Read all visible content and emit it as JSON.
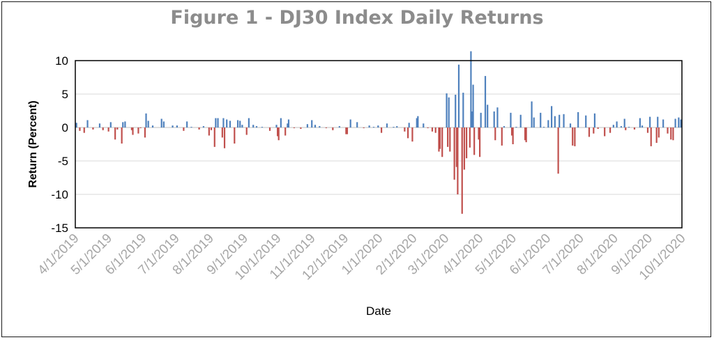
{
  "chart_data": {
    "type": "bar",
    "title": "Figure 1 - DJ30 Index Daily Returns",
    "xlabel": "Date",
    "ylabel": "Return (Percent)",
    "ylim": [
      -15,
      10
    ],
    "y_ticks": [
      "10",
      "5",
      "0",
      "-5",
      "-10",
      "-15"
    ],
    "x_range": [
      "2019-04-01",
      "2020-10-01"
    ],
    "x_ticks": [
      {
        "date": "2019-04-01",
        "label": "4/1/2019"
      },
      {
        "date": "2019-05-01",
        "label": "5/1/2019"
      },
      {
        "date": "2019-06-01",
        "label": "6/1/2019"
      },
      {
        "date": "2019-07-01",
        "label": "7/1/2019"
      },
      {
        "date": "2019-08-01",
        "label": "8/1/2019"
      },
      {
        "date": "2019-09-01",
        "label": "9/1/2019"
      },
      {
        "date": "2019-10-01",
        "label": "10/1/2019"
      },
      {
        "date": "2019-11-01",
        "label": "11/1/2019"
      },
      {
        "date": "2019-12-01",
        "label": "12/1/2019"
      },
      {
        "date": "2020-01-01",
        "label": "1/1/2020"
      },
      {
        "date": "2020-02-01",
        "label": "2/1/2020"
      },
      {
        "date": "2020-03-01",
        "label": "3/1/2020"
      },
      {
        "date": "2020-04-01",
        "label": "4/1/2020"
      },
      {
        "date": "2020-05-01",
        "label": "5/1/2020"
      },
      {
        "date": "2020-06-01",
        "label": "6/1/2020"
      },
      {
        "date": "2020-07-01",
        "label": "7/1/2020"
      },
      {
        "date": "2020-08-01",
        "label": "8/1/2020"
      },
      {
        "date": "2020-09-01",
        "label": "9/1/2020"
      },
      {
        "date": "2020-10-01",
        "label": "10/1/2020"
      }
    ],
    "grid": true,
    "legend": "none",
    "colors": {
      "positive": "#4f81bd",
      "negative": "#c0504d",
      "axis": "#000000",
      "grid": "#d9d9d9",
      "title": "#8c8c8c",
      "x_tick_text": "#a6a6a6"
    },
    "series": [
      {
        "points": [
          {
            "date": "2019-04-02",
            "value": 0.7
          },
          {
            "date": "2019-04-05",
            "value": -0.5
          },
          {
            "date": "2019-04-09",
            "value": -0.8
          },
          {
            "date": "2019-04-12",
            "value": 1.1
          },
          {
            "date": "2019-04-17",
            "value": -0.3
          },
          {
            "date": "2019-04-23",
            "value": 0.6
          },
          {
            "date": "2019-04-26",
            "value": -0.4
          },
          {
            "date": "2019-05-01",
            "value": -0.6
          },
          {
            "date": "2019-05-03",
            "value": 0.8
          },
          {
            "date": "2019-05-07",
            "value": -1.8
          },
          {
            "date": "2019-05-09",
            "value": -0.3
          },
          {
            "date": "2019-05-13",
            "value": -2.4
          },
          {
            "date": "2019-05-14",
            "value": 0.8
          },
          {
            "date": "2019-05-16",
            "value": 0.9
          },
          {
            "date": "2019-05-22",
            "value": -0.4
          },
          {
            "date": "2019-05-23",
            "value": -1.1
          },
          {
            "date": "2019-05-28",
            "value": -0.9
          },
          {
            "date": "2019-05-30",
            "value": -0.1
          },
          {
            "date": "2019-06-03",
            "value": -1.5
          },
          {
            "date": "2019-06-04",
            "value": 2.1
          },
          {
            "date": "2019-06-06",
            "value": 1.0
          },
          {
            "date": "2019-06-10",
            "value": 0.3
          },
          {
            "date": "2019-06-18",
            "value": 1.3
          },
          {
            "date": "2019-06-20",
            "value": 0.9
          },
          {
            "date": "2019-06-28",
            "value": 0.3
          },
          {
            "date": "2019-07-02",
            "value": 0.3
          },
          {
            "date": "2019-07-08",
            "value": -0.5
          },
          {
            "date": "2019-07-11",
            "value": 0.9
          },
          {
            "date": "2019-07-15",
            "value": 0.1
          },
          {
            "date": "2019-07-22",
            "value": -0.3
          },
          {
            "date": "2019-07-26",
            "value": 0.2
          },
          {
            "date": "2019-07-31",
            "value": -1.2
          },
          {
            "date": "2019-08-02",
            "value": -0.4
          },
          {
            "date": "2019-08-05",
            "value": -2.9
          },
          {
            "date": "2019-08-06",
            "value": 1.4
          },
          {
            "date": "2019-08-08",
            "value": 1.4
          },
          {
            "date": "2019-08-12",
            "value": -1.5
          },
          {
            "date": "2019-08-13",
            "value": 1.4
          },
          {
            "date": "2019-08-14",
            "value": -3.1
          },
          {
            "date": "2019-08-16",
            "value": 1.2
          },
          {
            "date": "2019-08-19",
            "value": 1.0
          },
          {
            "date": "2019-08-23",
            "value": -2.4
          },
          {
            "date": "2019-08-26",
            "value": 1.1
          },
          {
            "date": "2019-08-28",
            "value": 1.0
          },
          {
            "date": "2019-08-30",
            "value": 0.4
          },
          {
            "date": "2019-09-03",
            "value": -1.1
          },
          {
            "date": "2019-09-05",
            "value": 1.4
          },
          {
            "date": "2019-09-09",
            "value": 0.4
          },
          {
            "date": "2019-09-12",
            "value": 0.2
          },
          {
            "date": "2019-09-17",
            "value": 0.1
          },
          {
            "date": "2019-09-24",
            "value": -0.5
          },
          {
            "date": "2019-09-30",
            "value": 0.4
          },
          {
            "date": "2019-10-01",
            "value": -1.3
          },
          {
            "date": "2019-10-02",
            "value": -1.9
          },
          {
            "date": "2019-10-04",
            "value": 1.4
          },
          {
            "date": "2019-10-08",
            "value": -1.2
          },
          {
            "date": "2019-10-10",
            "value": 0.6
          },
          {
            "date": "2019-10-11",
            "value": 1.2
          },
          {
            "date": "2019-10-16",
            "value": -0.1
          },
          {
            "date": "2019-10-22",
            "value": -0.2
          },
          {
            "date": "2019-10-28",
            "value": 0.5
          },
          {
            "date": "2019-11-01",
            "value": 1.1
          },
          {
            "date": "2019-11-04",
            "value": 0.4
          },
          {
            "date": "2019-11-08",
            "value": 0.2
          },
          {
            "date": "2019-11-14",
            "value": -0.1
          },
          {
            "date": "2019-11-20",
            "value": -0.4
          },
          {
            "date": "2019-11-26",
            "value": 0.2
          },
          {
            "date": "2019-12-02",
            "value": -1.0
          },
          {
            "date": "2019-12-03",
            "value": -1.0
          },
          {
            "date": "2019-12-06",
            "value": 1.2
          },
          {
            "date": "2019-12-12",
            "value": 0.8
          },
          {
            "date": "2019-12-18",
            "value": -0.1
          },
          {
            "date": "2019-12-23",
            "value": 0.3
          },
          {
            "date": "2019-12-27",
            "value": 0.1
          },
          {
            "date": "2019-12-31",
            "value": 0.3
          },
          {
            "date": "2020-01-03",
            "value": -0.8
          },
          {
            "date": "2020-01-08",
            "value": 0.6
          },
          {
            "date": "2020-01-14",
            "value": 0.1
          },
          {
            "date": "2020-01-17",
            "value": 0.2
          },
          {
            "date": "2020-01-24",
            "value": -0.6
          },
          {
            "date": "2020-01-27",
            "value": -1.6
          },
          {
            "date": "2020-01-28",
            "value": 0.7
          },
          {
            "date": "2020-01-31",
            "value": -2.1
          },
          {
            "date": "2020-02-04",
            "value": 1.4
          },
          {
            "date": "2020-02-05",
            "value": 1.7
          },
          {
            "date": "2020-02-10",
            "value": 0.6
          },
          {
            "date": "2020-02-14",
            "value": -0.1
          },
          {
            "date": "2020-02-18",
            "value": -0.6
          },
          {
            "date": "2020-02-21",
            "value": -0.8
          },
          {
            "date": "2020-02-24",
            "value": -3.6
          },
          {
            "date": "2020-02-25",
            "value": -3.2
          },
          {
            "date": "2020-02-27",
            "value": -4.4
          },
          {
            "date": "2020-03-02",
            "value": 5.1
          },
          {
            "date": "2020-03-03",
            "value": -2.9
          },
          {
            "date": "2020-03-04",
            "value": 4.5
          },
          {
            "date": "2020-03-05",
            "value": -3.6
          },
          {
            "date": "2020-03-09",
            "value": -7.8
          },
          {
            "date": "2020-03-10",
            "value": 4.9
          },
          {
            "date": "2020-03-11",
            "value": -5.9
          },
          {
            "date": "2020-03-12",
            "value": -10.0
          },
          {
            "date": "2020-03-13",
            "value": 9.4
          },
          {
            "date": "2020-03-16",
            "value": -12.9
          },
          {
            "date": "2020-03-17",
            "value": 5.2
          },
          {
            "date": "2020-03-18",
            "value": -6.3
          },
          {
            "date": "2020-03-20",
            "value": -4.6
          },
          {
            "date": "2020-03-23",
            "value": -3.0
          },
          {
            "date": "2020-03-24",
            "value": 11.4
          },
          {
            "date": "2020-03-25",
            "value": 2.4
          },
          {
            "date": "2020-03-26",
            "value": 6.4
          },
          {
            "date": "2020-03-27",
            "value": -4.1
          },
          {
            "date": "2020-03-31",
            "value": -1.8
          },
          {
            "date": "2020-04-01",
            "value": -4.4
          },
          {
            "date": "2020-04-02",
            "value": 2.2
          },
          {
            "date": "2020-04-06",
            "value": 7.7
          },
          {
            "date": "2020-04-08",
            "value": 3.4
          },
          {
            "date": "2020-04-14",
            "value": 2.4
          },
          {
            "date": "2020-04-15",
            "value": -1.9
          },
          {
            "date": "2020-04-17",
            "value": 3.0
          },
          {
            "date": "2020-04-21",
            "value": -2.7
          },
          {
            "date": "2020-04-23",
            "value": 0.2
          },
          {
            "date": "2020-04-29",
            "value": 2.2
          },
          {
            "date": "2020-04-30",
            "value": -1.2
          },
          {
            "date": "2020-05-01",
            "value": -2.5
          },
          {
            "date": "2020-05-04",
            "value": 0.1
          },
          {
            "date": "2020-05-08",
            "value": 1.9
          },
          {
            "date": "2020-05-12",
            "value": -1.9
          },
          {
            "date": "2020-05-13",
            "value": -2.2
          },
          {
            "date": "2020-05-18",
            "value": 3.9
          },
          {
            "date": "2020-05-20",
            "value": 1.5
          },
          {
            "date": "2020-05-26",
            "value": 2.2
          },
          {
            "date": "2020-05-29",
            "value": 0.1
          },
          {
            "date": "2020-06-02",
            "value": 1.1
          },
          {
            "date": "2020-06-05",
            "value": 3.2
          },
          {
            "date": "2020-06-08",
            "value": 1.7
          },
          {
            "date": "2020-06-11",
            "value": -6.9
          },
          {
            "date": "2020-06-12",
            "value": 1.9
          },
          {
            "date": "2020-06-16",
            "value": 2.0
          },
          {
            "date": "2020-06-22",
            "value": 0.6
          },
          {
            "date": "2020-06-24",
            "value": -2.7
          },
          {
            "date": "2020-06-26",
            "value": -2.8
          },
          {
            "date": "2020-06-29",
            "value": 2.3
          },
          {
            "date": "2020-07-06",
            "value": 1.8
          },
          {
            "date": "2020-07-09",
            "value": -1.4
          },
          {
            "date": "2020-07-13",
            "value": -0.9
          },
          {
            "date": "2020-07-14",
            "value": 2.1
          },
          {
            "date": "2020-07-17",
            "value": -0.2
          },
          {
            "date": "2020-07-23",
            "value": -1.3
          },
          {
            "date": "2020-07-28",
            "value": -0.8
          },
          {
            "date": "2020-07-31",
            "value": 0.4
          },
          {
            "date": "2020-08-03",
            "value": 0.9
          },
          {
            "date": "2020-08-07",
            "value": 0.2
          },
          {
            "date": "2020-08-10",
            "value": 1.3
          },
          {
            "date": "2020-08-11",
            "value": -0.4
          },
          {
            "date": "2020-08-14",
            "value": 0.1
          },
          {
            "date": "2020-08-19",
            "value": -0.3
          },
          {
            "date": "2020-08-24",
            "value": 1.4
          },
          {
            "date": "2020-08-26",
            "value": 0.3
          },
          {
            "date": "2020-08-31",
            "value": -0.8
          },
          {
            "date": "2020-09-02",
            "value": 1.6
          },
          {
            "date": "2020-09-03",
            "value": -2.8
          },
          {
            "date": "2020-09-08",
            "value": -2.3
          },
          {
            "date": "2020-09-09",
            "value": 1.6
          },
          {
            "date": "2020-09-10",
            "value": -1.5
          },
          {
            "date": "2020-09-14",
            "value": 1.2
          },
          {
            "date": "2020-09-18",
            "value": -0.9
          },
          {
            "date": "2020-09-21",
            "value": -1.8
          },
          {
            "date": "2020-09-23",
            "value": -1.9
          },
          {
            "date": "2020-09-25",
            "value": 1.3
          },
          {
            "date": "2020-09-28",
            "value": 1.5
          },
          {
            "date": "2020-09-30",
            "value": 1.2
          }
        ]
      }
    ]
  }
}
